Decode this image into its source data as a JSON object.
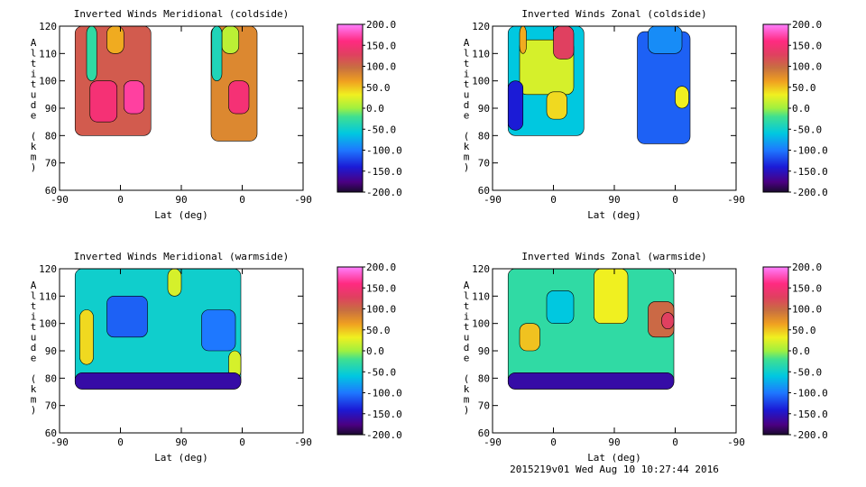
{
  "footer": "2015219v01 Wed Aug 10 10:27:44 2016",
  "chart_data": [
    {
      "type": "heatmap",
      "title": "Inverted Winds Meridional (coldside)",
      "xlabel": "Lat (deg)",
      "ylabel": "Altitude (km)",
      "x_ticks": [
        "-90",
        "0",
        "90",
        "0",
        "-90"
      ],
      "y_ticks": [
        "60",
        "70",
        "80",
        "90",
        "100",
        "110",
        "120"
      ],
      "ylim": [
        60,
        120
      ],
      "colorbar_ticks": [
        "200.0",
        "150.0",
        "100.0",
        "50.0",
        "0.0",
        "-50.0",
        "-100.0",
        "-150.0",
        "-200.0"
      ],
      "colorbar_range": [
        -200,
        200
      ],
      "regions": [
        {
          "x": [
            -67,
            45
          ],
          "y": [
            80,
            120
          ],
          "value": 110
        },
        {
          "x": [
            -45,
            -5
          ],
          "y": [
            85,
            100
          ],
          "value": 150
        },
        {
          "x": [
            5,
            35
          ],
          "y": [
            88,
            100
          ],
          "value": 170
        },
        {
          "x": [
            -50,
            -35
          ],
          "y": [
            100,
            120
          ],
          "value": -30
        },
        {
          "x": [
            -20,
            5
          ],
          "y": [
            110,
            120
          ],
          "value": 60
        },
        {
          "x": [
            134,
            202
          ],
          "y": [
            78,
            120
          ],
          "value": 80
        },
        {
          "x": [
            160,
            190
          ],
          "y": [
            88,
            100
          ],
          "value": 150
        },
        {
          "x": [
            150,
            175
          ],
          "y": [
            110,
            120
          ],
          "value": 10
        },
        {
          "x": [
            135,
            150
          ],
          "y": [
            100,
            120
          ],
          "value": -40
        }
      ]
    },
    {
      "type": "heatmap",
      "title": "Inverted Winds Zonal (coldside)",
      "xlabel": "Lat (deg)",
      "ylabel": "Altitude (km)",
      "x_ticks": [
        "-90",
        "0",
        "90",
        "0",
        "-90"
      ],
      "y_ticks": [
        "60",
        "70",
        "80",
        "90",
        "100",
        "110",
        "120"
      ],
      "ylim": [
        60,
        120
      ],
      "colorbar_ticks": [
        "200.0",
        "150.0",
        "100.0",
        "50.0",
        "0.0",
        "-50.0",
        "-100.0",
        "-150.0",
        "-200.0"
      ],
      "colorbar_range": [
        -200,
        200
      ],
      "regions": [
        {
          "x": [
            -67,
            45
          ],
          "y": [
            80,
            120
          ],
          "value": -60
        },
        {
          "x": [
            -50,
            30
          ],
          "y": [
            95,
            115
          ],
          "value": 20
        },
        {
          "x": [
            0,
            30
          ],
          "y": [
            108,
            120
          ],
          "value": 130
        },
        {
          "x": [
            -50,
            -40
          ],
          "y": [
            110,
            120
          ],
          "value": 60
        },
        {
          "x": [
            -10,
            20
          ],
          "y": [
            86,
            96
          ],
          "value": 40
        },
        {
          "x": [
            -67,
            -45
          ],
          "y": [
            82,
            100
          ],
          "value": -140
        },
        {
          "x": [
            124,
            202
          ],
          "y": [
            77,
            118
          ],
          "value": -110
        },
        {
          "x": [
            140,
            190
          ],
          "y": [
            110,
            120
          ],
          "value": -90
        },
        {
          "x": [
            180,
            200
          ],
          "y": [
            90,
            98
          ],
          "value": 30
        }
      ]
    },
    {
      "type": "heatmap",
      "title": "Inverted Winds Meridional (warmside)",
      "xlabel": "Lat (deg)",
      "ylabel": "Altitude (km)",
      "x_ticks": [
        "-90",
        "0",
        "90",
        "0",
        "-90"
      ],
      "y_ticks": [
        "60",
        "70",
        "80",
        "90",
        "100",
        "110",
        "120"
      ],
      "ylim": [
        60,
        120
      ],
      "colorbar_ticks": [
        "200.0",
        "150.0",
        "100.0",
        "50.0",
        "0.0",
        "-50.0",
        "-100.0",
        "-150.0",
        "-200.0"
      ],
      "colorbar_range": [
        -200,
        200
      ],
      "regions": [
        {
          "x": [
            -67,
            178
          ],
          "y": [
            76,
            120
          ],
          "value": -50
        },
        {
          "x": [
            -20,
            40
          ],
          "y": [
            95,
            110
          ],
          "value": -110
        },
        {
          "x": [
            -60,
            -40
          ],
          "y": [
            85,
            105
          ],
          "value": 40
        },
        {
          "x": [
            120,
            170
          ],
          "y": [
            90,
            105
          ],
          "value": -100
        },
        {
          "x": [
            70,
            90
          ],
          "y": [
            110,
            120
          ],
          "value": 20
        },
        {
          "x": [
            160,
            178
          ],
          "y": [
            80,
            90
          ],
          "value": 20
        },
        {
          "x": [
            -67,
            178
          ],
          "y": [
            76,
            82
          ],
          "value": -160
        }
      ]
    },
    {
      "type": "heatmap",
      "title": "Inverted Winds Zonal (warmside)",
      "xlabel": "Lat (deg)",
      "ylabel": "Altitude (km)",
      "x_ticks": [
        "-90",
        "0",
        "90",
        "0",
        "-90"
      ],
      "y_ticks": [
        "60",
        "70",
        "80",
        "90",
        "100",
        "110",
        "120"
      ],
      "ylim": [
        60,
        120
      ],
      "colorbar_ticks": [
        "200.0",
        "150.0",
        "100.0",
        "50.0",
        "0.0",
        "-50.0",
        "-100.0",
        "-150.0",
        "-200.0"
      ],
      "colorbar_range": [
        -200,
        200
      ],
      "regions": [
        {
          "x": [
            -67,
            178
          ],
          "y": [
            76,
            120
          ],
          "value": -30
        },
        {
          "x": [
            -50,
            -20
          ],
          "y": [
            90,
            100
          ],
          "value": 50
        },
        {
          "x": [
            140,
            178
          ],
          "y": [
            95,
            108
          ],
          "value": 100
        },
        {
          "x": [
            160,
            178
          ],
          "y": [
            98,
            104
          ],
          "value": 130
        },
        {
          "x": [
            60,
            110
          ],
          "y": [
            100,
            120
          ],
          "value": 30
        },
        {
          "x": [
            -10,
            30
          ],
          "y": [
            100,
            112
          ],
          "value": -60
        },
        {
          "x": [
            -67,
            178
          ],
          "y": [
            76,
            82
          ],
          "value": -160
        }
      ]
    }
  ]
}
